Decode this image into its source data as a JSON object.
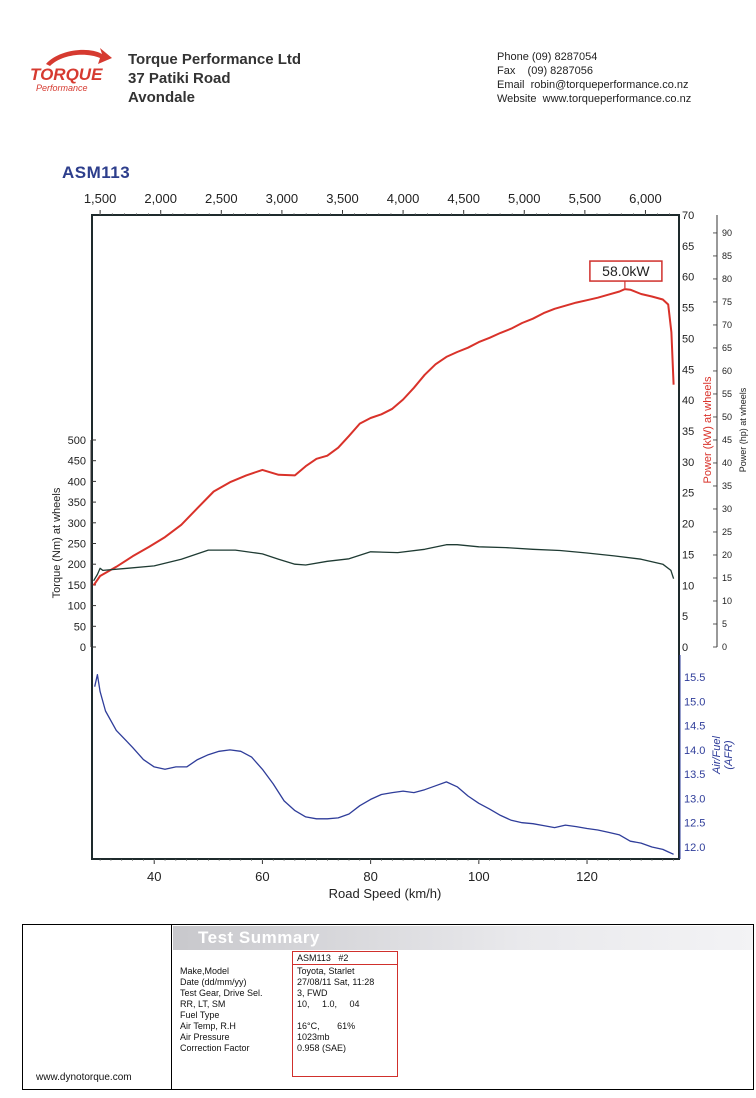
{
  "header": {
    "company_name": "Torque Performance Ltd",
    "address_line1": "37 Patiki Road",
    "address_line2": "Avondale",
    "logo_main": "TORQUE",
    "logo_sub": "Performance",
    "phone": "Phone (09) 8287054",
    "fax": "Fax    (09) 8287056",
    "email": "Email  robin@torqueperformance.co.nz",
    "website": "Website  www.torqueperformance.co.nz"
  },
  "colors": {
    "power": "#d9322a",
    "torque": "#1f3b33",
    "afr": "#2f3d9a",
    "frame": "#1e2a2c",
    "callout": "#d0302c"
  },
  "chart_data": {
    "type": "line",
    "title": "ASM113",
    "top_axis": {
      "label": "",
      "ticks": [
        "1,500",
        "2,000",
        "2,500",
        "3,000",
        "3,500",
        "4,000",
        "4,500",
        "5,000",
        "5,500",
        "6,000"
      ],
      "tick_speeds": [
        30,
        41.2,
        52.4,
        63.6,
        74.8,
        86.0,
        97.2,
        108.4,
        119.6,
        130.8
      ]
    },
    "x_axis": {
      "label": "Road Speed (km/h)",
      "range": [
        28.5,
        137
      ],
      "ticks": [
        40,
        60,
        80,
        100,
        120
      ]
    },
    "torque_axis": {
      "label": "Torque (Nm) at wheels",
      "range": [
        0,
        500
      ],
      "ticks": [
        0,
        50,
        100,
        150,
        200,
        250,
        300,
        350,
        400,
        450,
        500
      ]
    },
    "power_kw_axis": {
      "label": "Power (kW) at wheels",
      "range": [
        0,
        70
      ],
      "ticks": [
        0,
        5,
        10,
        15,
        20,
        25,
        30,
        35,
        40,
        45,
        50,
        55,
        60,
        65,
        70
      ]
    },
    "power_hp_axis": {
      "label": "Power (hp) at wheels",
      "range": [
        0,
        93.9
      ],
      "ticks": [
        0,
        5,
        10,
        15,
        20,
        25,
        30,
        35,
        40,
        45,
        50,
        55,
        60,
        65,
        70,
        75,
        80,
        85,
        90
      ]
    },
    "afr_axis": {
      "label_line1": "Air/Fuel",
      "label_line2": "(AFR)",
      "range": [
        11.8,
        15.8
      ],
      "ticks": [
        "12.0",
        "12.5",
        "13.0",
        "13.5",
        "14.0",
        "14.5",
        "15.0",
        "15.5"
      ]
    },
    "annotation": {
      "text": "58.0kW",
      "x": 127,
      "y": 58.0
    },
    "series": [
      {
        "key": "power",
        "axis": "power_kw",
        "x": [
          28.8,
          30,
          33,
          36,
          39,
          42,
          45,
          48,
          51,
          54,
          57,
          60,
          63,
          66,
          68,
          70,
          72,
          74,
          76,
          78,
          80,
          82,
          84,
          86,
          88,
          90,
          92,
          94,
          96,
          98,
          100,
          102,
          104,
          106,
          108,
          110,
          112,
          114,
          116,
          118,
          120,
          122,
          124,
          126,
          127,
          128,
          130,
          132,
          134,
          135,
          135.6,
          136
        ],
        "values": [
          10,
          11.5,
          13,
          14.7,
          16.2,
          17.8,
          19.8,
          22.5,
          25.2,
          26.7,
          27.8,
          28.7,
          27.9,
          27.8,
          29.3,
          30.5,
          31,
          32.3,
          34.2,
          36.2,
          37.1,
          37.7,
          38.6,
          40.1,
          42,
          44.1,
          45.8,
          47,
          47.8,
          48.5,
          49.4,
          50.1,
          50.9,
          51.6,
          52.5,
          53.2,
          54.1,
          54.8,
          55.3,
          55.8,
          56.2,
          56.6,
          57.1,
          57.6,
          58,
          57.9,
          57.2,
          56.8,
          56.3,
          55.5,
          51,
          42.5
        ]
      },
      {
        "key": "torque",
        "axis": "torque",
        "x": [
          28.8,
          29.5,
          30,
          30.5,
          35,
          40,
          45,
          50,
          55,
          60,
          63,
          66,
          68,
          72,
          76,
          80,
          85,
          90,
          94,
          96,
          100,
          105,
          110,
          115,
          120,
          125,
          130,
          134,
          135.5,
          136
        ],
        "values": [
          160,
          175,
          190,
          185,
          190,
          196,
          212,
          234,
          234,
          225,
          212,
          200,
          198,
          207,
          213,
          230,
          228,
          236,
          247,
          247,
          242,
          240,
          236,
          233,
          227,
          220,
          212,
          200,
          185,
          165
        ]
      },
      {
        "key": "afr",
        "axis": "afr",
        "x": [
          29,
          29.5,
          30,
          31,
          33,
          36,
          38,
          40,
          42,
          44,
          46,
          48,
          50,
          52,
          54,
          56,
          58,
          60,
          62,
          64,
          66,
          68,
          70,
          72,
          74,
          76,
          78,
          80,
          82,
          84,
          86,
          88,
          90,
          92,
          94,
          96,
          98,
          100,
          102,
          104,
          106,
          108,
          110,
          112,
          114,
          116,
          118,
          120,
          122,
          124,
          126,
          128,
          130,
          132,
          134,
          135,
          136
        ],
        "values": [
          15.3,
          15.55,
          15.2,
          14.8,
          14.4,
          14.05,
          13.8,
          13.65,
          13.6,
          13.65,
          13.65,
          13.8,
          13.9,
          13.97,
          14.0,
          13.97,
          13.85,
          13.6,
          13.3,
          12.95,
          12.75,
          12.62,
          12.58,
          12.58,
          12.6,
          12.68,
          12.85,
          12.98,
          13.08,
          13.12,
          13.15,
          13.12,
          13.18,
          13.26,
          13.34,
          13.24,
          13.05,
          12.9,
          12.78,
          12.65,
          12.55,
          12.5,
          12.48,
          12.44,
          12.4,
          12.45,
          12.42,
          12.38,
          12.35,
          12.3,
          12.25,
          12.12,
          12.08,
          12.0,
          11.95,
          11.9,
          11.85
        ]
      }
    ]
  },
  "test_summary": {
    "title": "Test Summary",
    "test_id": "ASM113   #2",
    "labels": [
      "Make,Model",
      "Date (dd/mm/yy)",
      "Test Gear, Drive Sel.",
      "RR, LT, SM",
      "Fuel Type",
      "Air Temp, R.H",
      "Air Pressure",
      "Correction Factor"
    ],
    "values": [
      "Toyota, Starlet",
      "27/08/11 Sat, 11:28",
      "3, FWD",
      "10,     1.0,     04",
      "",
      "16°C,       61%",
      "1023mb",
      "0.958 (SAE)"
    ],
    "website": "www.dynotorque.com"
  }
}
